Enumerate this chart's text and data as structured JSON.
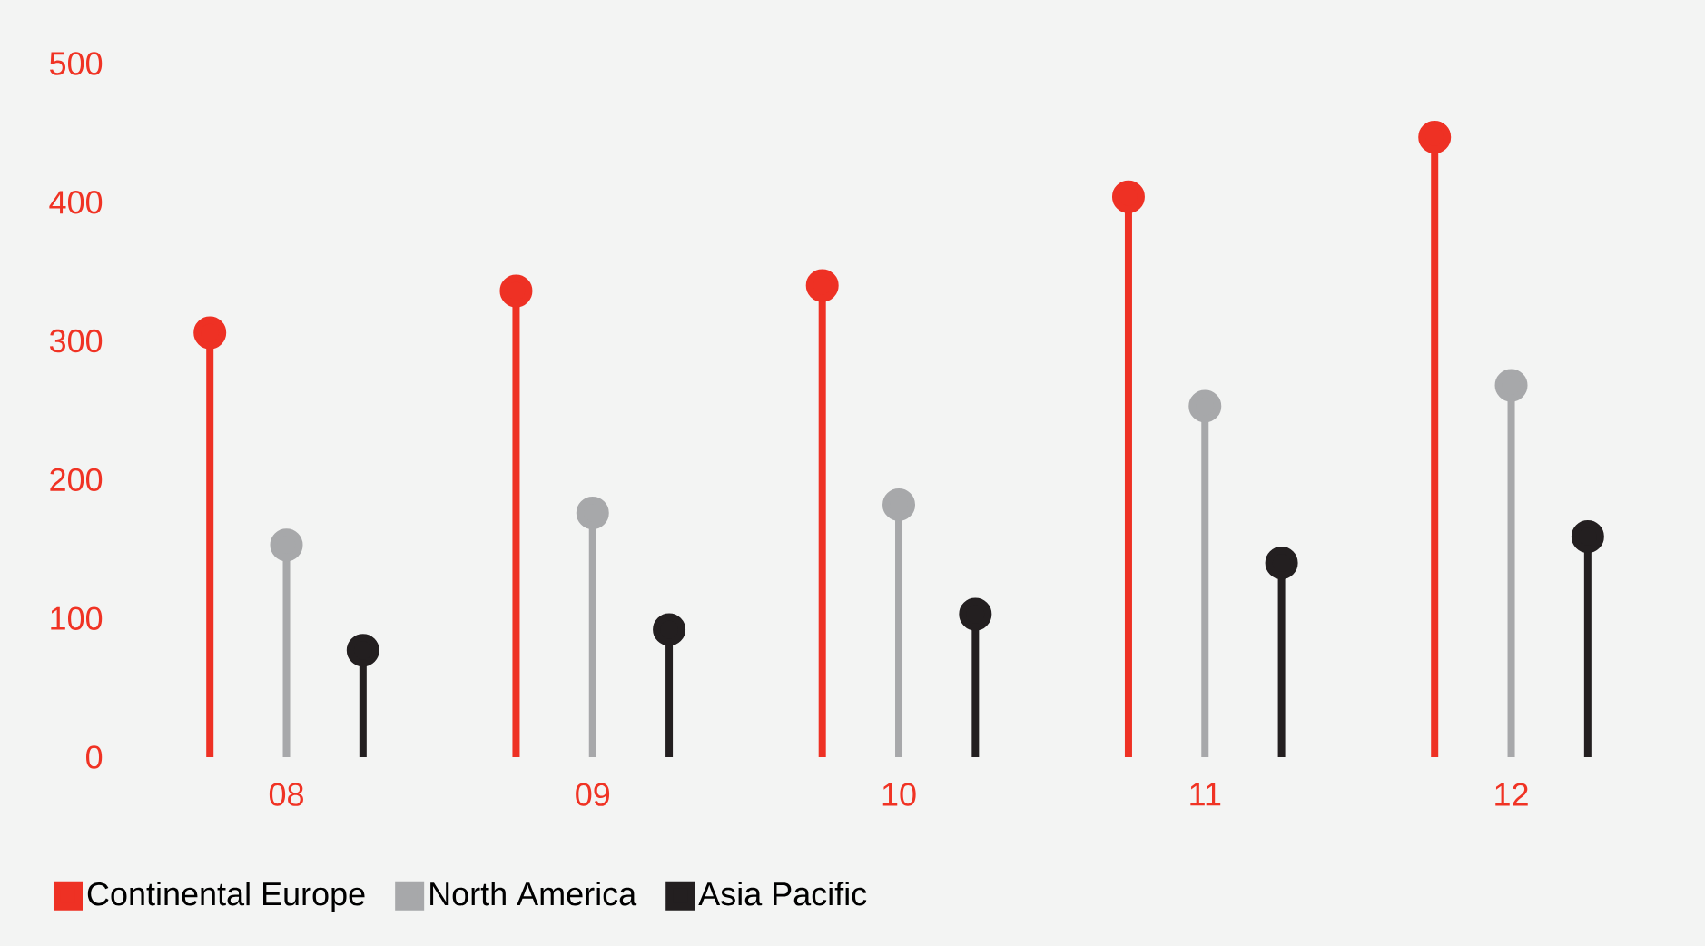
{
  "chart_data": {
    "type": "lollipop",
    "categories": [
      "08",
      "09",
      "10",
      "11",
      "12"
    ],
    "series": [
      {
        "name": "Continental Europe",
        "color": "#ee3124",
        "values": [
          306,
          336,
          340,
          404,
          447
        ]
      },
      {
        "name": "North America",
        "color": "#a7a8aa",
        "values": [
          153,
          176,
          182,
          253,
          268
        ]
      },
      {
        "name": "Asia Pacific",
        "color": "#231f20",
        "values": [
          77,
          92,
          103,
          140,
          159
        ]
      }
    ],
    "ylim": [
      0,
      500
    ],
    "yticks": [
      0,
      100,
      200,
      300,
      400,
      500
    ],
    "grid": false,
    "legend": "bottom left",
    "marker": "circle"
  }
}
